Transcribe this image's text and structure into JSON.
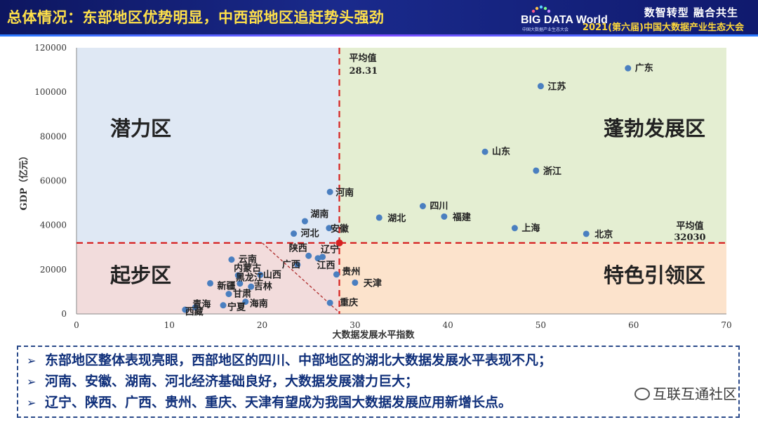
{
  "header": {
    "title": "总体情况：东部地区优势明显，中西部地区追赶势头强劲",
    "logo_text": "BIG DATA World",
    "logo_sub": "中国大数据产业生态大会",
    "slogan": "数智转型  融合共生",
    "conference": "2021(第六届)中国大数据产业生态大会"
  },
  "colors": {
    "header_bg": "#14207a",
    "title": "#ffe14a",
    "quadrant_top_left": "#dfe8f4",
    "quadrant_top_right": "#e4eed2",
    "quadrant_bottom_left": "#f2dcdc",
    "quadrant_bottom_right": "#fce3cc",
    "point": "#4a7fc0",
    "mean_line": "#d62020",
    "text_box": "#0f2f7a"
  },
  "chart_data": {
    "type": "scatter",
    "xlabel": "大数据发展水平指数",
    "ylabel": "GDP（亿元）",
    "xlim": [
      0,
      70
    ],
    "ylim": [
      0,
      120000
    ],
    "xticks": [
      "0",
      "10",
      "20",
      "30",
      "40",
      "50",
      "60",
      "70"
    ],
    "yticks": [
      "0",
      "20000",
      "40000",
      "60000",
      "80000",
      "100000",
      "120000"
    ],
    "mean_x": {
      "value": 28.31,
      "label": "平均值",
      "value_label": "28.31"
    },
    "mean_y": {
      "value": 32030,
      "label": "平均值",
      "value_label": "32030"
    },
    "quadrants": [
      {
        "name": "潜力区",
        "position": "top-left"
      },
      {
        "name": "蓬勃发展区",
        "position": "top-right"
      },
      {
        "name": "起步区",
        "position": "bottom-left"
      },
      {
        "name": "特色引领区",
        "position": "bottom-right"
      }
    ],
    "points": [
      {
        "name": "广东",
        "x": 59.4,
        "y": 110760
      },
      {
        "name": "江苏",
        "x": 50.0,
        "y": 102700
      },
      {
        "name": "山东",
        "x": 44.0,
        "y": 73100
      },
      {
        "name": "浙江",
        "x": 49.5,
        "y": 64600
      },
      {
        "name": "河南",
        "x": 27.3,
        "y": 55000
      },
      {
        "name": "四川",
        "x": 37.3,
        "y": 48600
      },
      {
        "name": "湖北",
        "x": 32.6,
        "y": 43400
      },
      {
        "name": "福建",
        "x": 39.6,
        "y": 43900
      },
      {
        "name": "湖南",
        "x": 24.6,
        "y": 41800
      },
      {
        "name": "上海",
        "x": 47.2,
        "y": 38700
      },
      {
        "name": "安徽",
        "x": 27.2,
        "y": 38700
      },
      {
        "name": "河北",
        "x": 23.4,
        "y": 36200
      },
      {
        "name": "北京",
        "x": 54.9,
        "y": 36100
      },
      {
        "name": "陕西",
        "x": 25.0,
        "y": 26200
      },
      {
        "name": "辽宁",
        "x": 26.0,
        "y": 25100
      },
      {
        "name": "广西",
        "x": 23.8,
        "y": 22200
      },
      {
        "name": "江西",
        "x": 26.5,
        "y": 25700
      },
      {
        "name": "云南",
        "x": 16.7,
        "y": 24500
      },
      {
        "name": "贵州",
        "x": 28.0,
        "y": 17800
      },
      {
        "name": "内蒙古",
        "x": 17.4,
        "y": 17400
      },
      {
        "name": "山西",
        "x": 19.8,
        "y": 17600
      },
      {
        "name": "天津",
        "x": 30.0,
        "y": 14100
      },
      {
        "name": "新疆",
        "x": 14.4,
        "y": 13800
      },
      {
        "name": "黑龙江",
        "x": 17.6,
        "y": 13700
      },
      {
        "name": "吉林",
        "x": 18.8,
        "y": 12300
      },
      {
        "name": "甘肃",
        "x": 16.4,
        "y": 9000
      },
      {
        "name": "重庆",
        "x": 27.3,
        "y": 5000
      },
      {
        "name": "海南",
        "x": 18.2,
        "y": 5500
      },
      {
        "name": "青海",
        "x": 12.8,
        "y": 3000
      },
      {
        "name": "宁夏",
        "x": 15.8,
        "y": 3900
      },
      {
        "name": "西藏",
        "x": 11.7,
        "y": 1900
      }
    ]
  },
  "bullets": [
    "东部地区整体表现亮眼，西部地区的四川、中部地区的湖北大数据发展水平表现不凡；",
    "河南、安徽、湖南、河北经济基础良好，大数据发展潜力巨大；",
    "辽宁、陕西、广西、贵州、重庆、天津有望成为我国大数据发展应用新增长点。"
  ],
  "bullet_icon": "arrow-right-icon",
  "watermark": "互联互通社区",
  "watermark_icon": "wechat-icon"
}
